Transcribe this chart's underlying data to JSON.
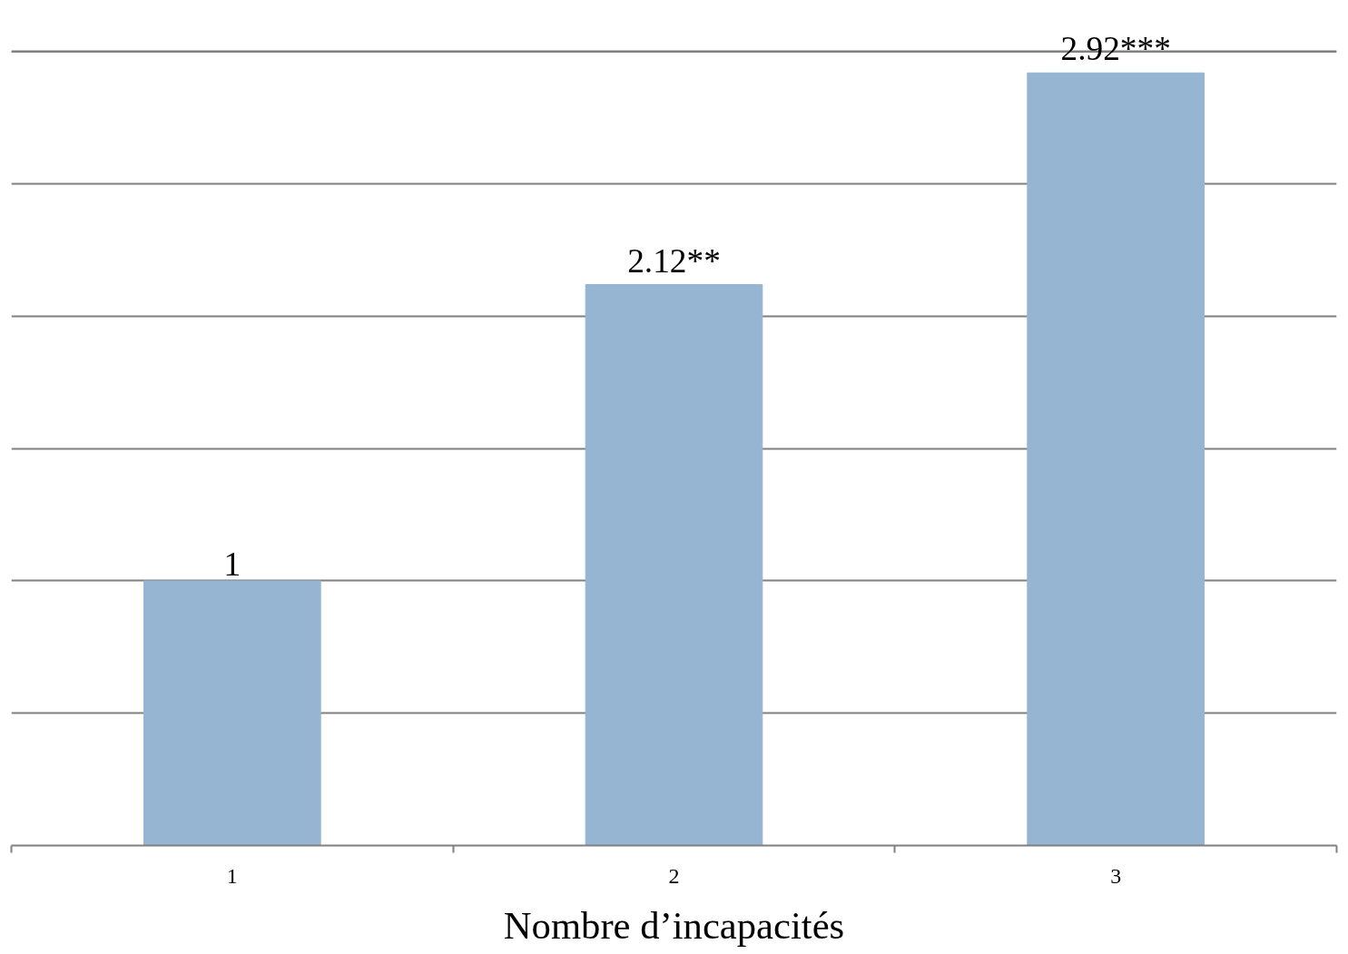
{
  "chart_data": {
    "type": "bar",
    "xlabel": "Nombre d’incapacités",
    "categories": [
      "1",
      "2",
      "3"
    ],
    "values": [
      1,
      2.12,
      2.92
    ],
    "color": "#95b5d3",
    "value_labels": [
      "1",
      "2.12**",
      "2.92***"
    ],
    "ylim": [
      0,
      3
    ],
    "yticks": [
      {
        "value": 0,
        "label": null
      },
      {
        "value": 0.5,
        "label": null
      },
      {
        "value": 1,
        "label": null
      },
      {
        "value": 1.5,
        "label": null
      },
      {
        "value": 2,
        "label": null
      },
      {
        "value": 2.5,
        "label": null
      },
      {
        "value": 3,
        "label": null
      }
    ],
    "tick_labels": "x",
    "grid": "y"
  }
}
